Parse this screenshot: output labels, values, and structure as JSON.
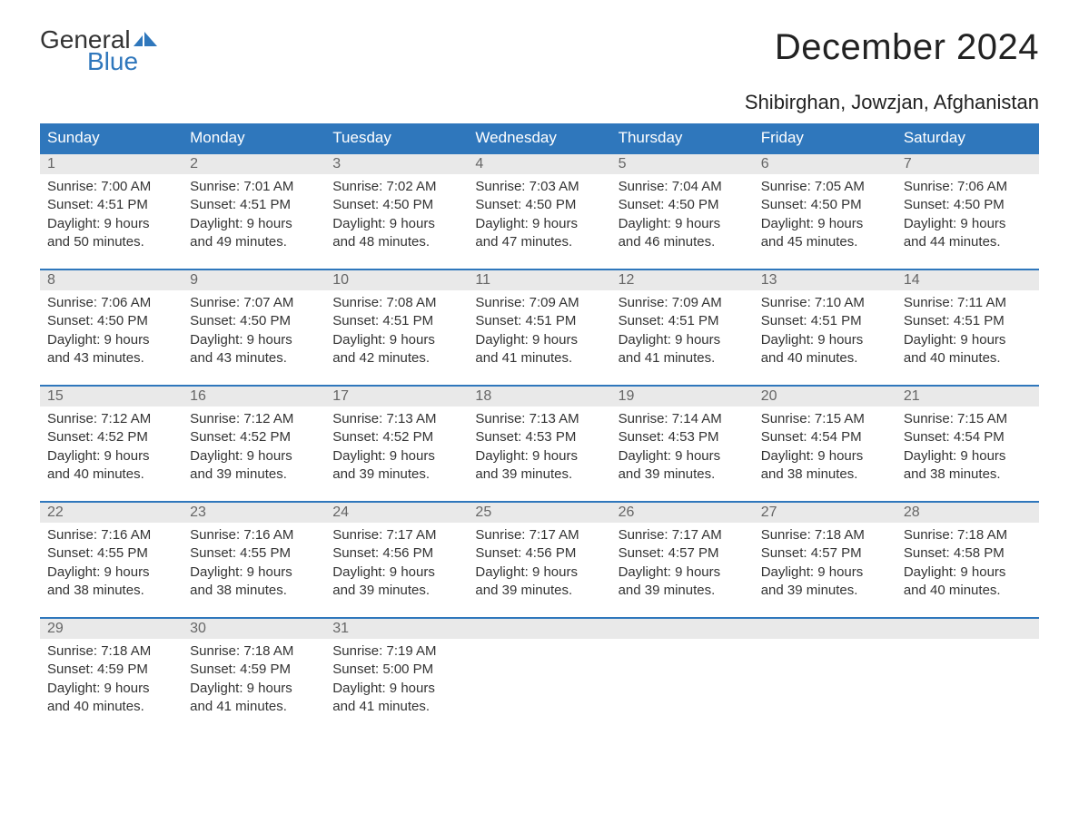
{
  "logo": {
    "word1": "General",
    "word2": "Blue",
    "flag_color": "#2f77bc"
  },
  "title": "December 2024",
  "location": "Shibirghan, Jowzjan, Afghanistan",
  "colors": {
    "header_bg": "#2f77bc",
    "header_fg": "#ffffff",
    "daynum_bg": "#e9e9e9",
    "daynum_fg": "#666666",
    "row_border": "#2f77bc",
    "body_text": "#333333",
    "page_bg": "#ffffff"
  },
  "typography": {
    "title_fontsize_pt": 30,
    "location_fontsize_pt": 16,
    "header_fontsize_pt": 13,
    "body_fontsize_pt": 11
  },
  "columns": [
    "Sunday",
    "Monday",
    "Tuesday",
    "Wednesday",
    "Thursday",
    "Friday",
    "Saturday"
  ],
  "weeks": [
    [
      {
        "n": "1",
        "sr": "Sunrise: 7:00 AM",
        "ss": "Sunset: 4:51 PM",
        "d1": "Daylight: 9 hours",
        "d2": "and 50 minutes."
      },
      {
        "n": "2",
        "sr": "Sunrise: 7:01 AM",
        "ss": "Sunset: 4:51 PM",
        "d1": "Daylight: 9 hours",
        "d2": "and 49 minutes."
      },
      {
        "n": "3",
        "sr": "Sunrise: 7:02 AM",
        "ss": "Sunset: 4:50 PM",
        "d1": "Daylight: 9 hours",
        "d2": "and 48 minutes."
      },
      {
        "n": "4",
        "sr": "Sunrise: 7:03 AM",
        "ss": "Sunset: 4:50 PM",
        "d1": "Daylight: 9 hours",
        "d2": "and 47 minutes."
      },
      {
        "n": "5",
        "sr": "Sunrise: 7:04 AM",
        "ss": "Sunset: 4:50 PM",
        "d1": "Daylight: 9 hours",
        "d2": "and 46 minutes."
      },
      {
        "n": "6",
        "sr": "Sunrise: 7:05 AM",
        "ss": "Sunset: 4:50 PM",
        "d1": "Daylight: 9 hours",
        "d2": "and 45 minutes."
      },
      {
        "n": "7",
        "sr": "Sunrise: 7:06 AM",
        "ss": "Sunset: 4:50 PM",
        "d1": "Daylight: 9 hours",
        "d2": "and 44 minutes."
      }
    ],
    [
      {
        "n": "8",
        "sr": "Sunrise: 7:06 AM",
        "ss": "Sunset: 4:50 PM",
        "d1": "Daylight: 9 hours",
        "d2": "and 43 minutes."
      },
      {
        "n": "9",
        "sr": "Sunrise: 7:07 AM",
        "ss": "Sunset: 4:50 PM",
        "d1": "Daylight: 9 hours",
        "d2": "and 43 minutes."
      },
      {
        "n": "10",
        "sr": "Sunrise: 7:08 AM",
        "ss": "Sunset: 4:51 PM",
        "d1": "Daylight: 9 hours",
        "d2": "and 42 minutes."
      },
      {
        "n": "11",
        "sr": "Sunrise: 7:09 AM",
        "ss": "Sunset: 4:51 PM",
        "d1": "Daylight: 9 hours",
        "d2": "and 41 minutes."
      },
      {
        "n": "12",
        "sr": "Sunrise: 7:09 AM",
        "ss": "Sunset: 4:51 PM",
        "d1": "Daylight: 9 hours",
        "d2": "and 41 minutes."
      },
      {
        "n": "13",
        "sr": "Sunrise: 7:10 AM",
        "ss": "Sunset: 4:51 PM",
        "d1": "Daylight: 9 hours",
        "d2": "and 40 minutes."
      },
      {
        "n": "14",
        "sr": "Sunrise: 7:11 AM",
        "ss": "Sunset: 4:51 PM",
        "d1": "Daylight: 9 hours",
        "d2": "and 40 minutes."
      }
    ],
    [
      {
        "n": "15",
        "sr": "Sunrise: 7:12 AM",
        "ss": "Sunset: 4:52 PM",
        "d1": "Daylight: 9 hours",
        "d2": "and 40 minutes."
      },
      {
        "n": "16",
        "sr": "Sunrise: 7:12 AM",
        "ss": "Sunset: 4:52 PM",
        "d1": "Daylight: 9 hours",
        "d2": "and 39 minutes."
      },
      {
        "n": "17",
        "sr": "Sunrise: 7:13 AM",
        "ss": "Sunset: 4:52 PM",
        "d1": "Daylight: 9 hours",
        "d2": "and 39 minutes."
      },
      {
        "n": "18",
        "sr": "Sunrise: 7:13 AM",
        "ss": "Sunset: 4:53 PM",
        "d1": "Daylight: 9 hours",
        "d2": "and 39 minutes."
      },
      {
        "n": "19",
        "sr": "Sunrise: 7:14 AM",
        "ss": "Sunset: 4:53 PM",
        "d1": "Daylight: 9 hours",
        "d2": "and 39 minutes."
      },
      {
        "n": "20",
        "sr": "Sunrise: 7:15 AM",
        "ss": "Sunset: 4:54 PM",
        "d1": "Daylight: 9 hours",
        "d2": "and 38 minutes."
      },
      {
        "n": "21",
        "sr": "Sunrise: 7:15 AM",
        "ss": "Sunset: 4:54 PM",
        "d1": "Daylight: 9 hours",
        "d2": "and 38 minutes."
      }
    ],
    [
      {
        "n": "22",
        "sr": "Sunrise: 7:16 AM",
        "ss": "Sunset: 4:55 PM",
        "d1": "Daylight: 9 hours",
        "d2": "and 38 minutes."
      },
      {
        "n": "23",
        "sr": "Sunrise: 7:16 AM",
        "ss": "Sunset: 4:55 PM",
        "d1": "Daylight: 9 hours",
        "d2": "and 38 minutes."
      },
      {
        "n": "24",
        "sr": "Sunrise: 7:17 AM",
        "ss": "Sunset: 4:56 PM",
        "d1": "Daylight: 9 hours",
        "d2": "and 39 minutes."
      },
      {
        "n": "25",
        "sr": "Sunrise: 7:17 AM",
        "ss": "Sunset: 4:56 PM",
        "d1": "Daylight: 9 hours",
        "d2": "and 39 minutes."
      },
      {
        "n": "26",
        "sr": "Sunrise: 7:17 AM",
        "ss": "Sunset: 4:57 PM",
        "d1": "Daylight: 9 hours",
        "d2": "and 39 minutes."
      },
      {
        "n": "27",
        "sr": "Sunrise: 7:18 AM",
        "ss": "Sunset: 4:57 PM",
        "d1": "Daylight: 9 hours",
        "d2": "and 39 minutes."
      },
      {
        "n": "28",
        "sr": "Sunrise: 7:18 AM",
        "ss": "Sunset: 4:58 PM",
        "d1": "Daylight: 9 hours",
        "d2": "and 40 minutes."
      }
    ],
    [
      {
        "n": "29",
        "sr": "Sunrise: 7:18 AM",
        "ss": "Sunset: 4:59 PM",
        "d1": "Daylight: 9 hours",
        "d2": "and 40 minutes."
      },
      {
        "n": "30",
        "sr": "Sunrise: 7:18 AM",
        "ss": "Sunset: 4:59 PM",
        "d1": "Daylight: 9 hours",
        "d2": "and 41 minutes."
      },
      {
        "n": "31",
        "sr": "Sunrise: 7:19 AM",
        "ss": "Sunset: 5:00 PM",
        "d1": "Daylight: 9 hours",
        "d2": "and 41 minutes."
      },
      null,
      null,
      null,
      null
    ]
  ]
}
